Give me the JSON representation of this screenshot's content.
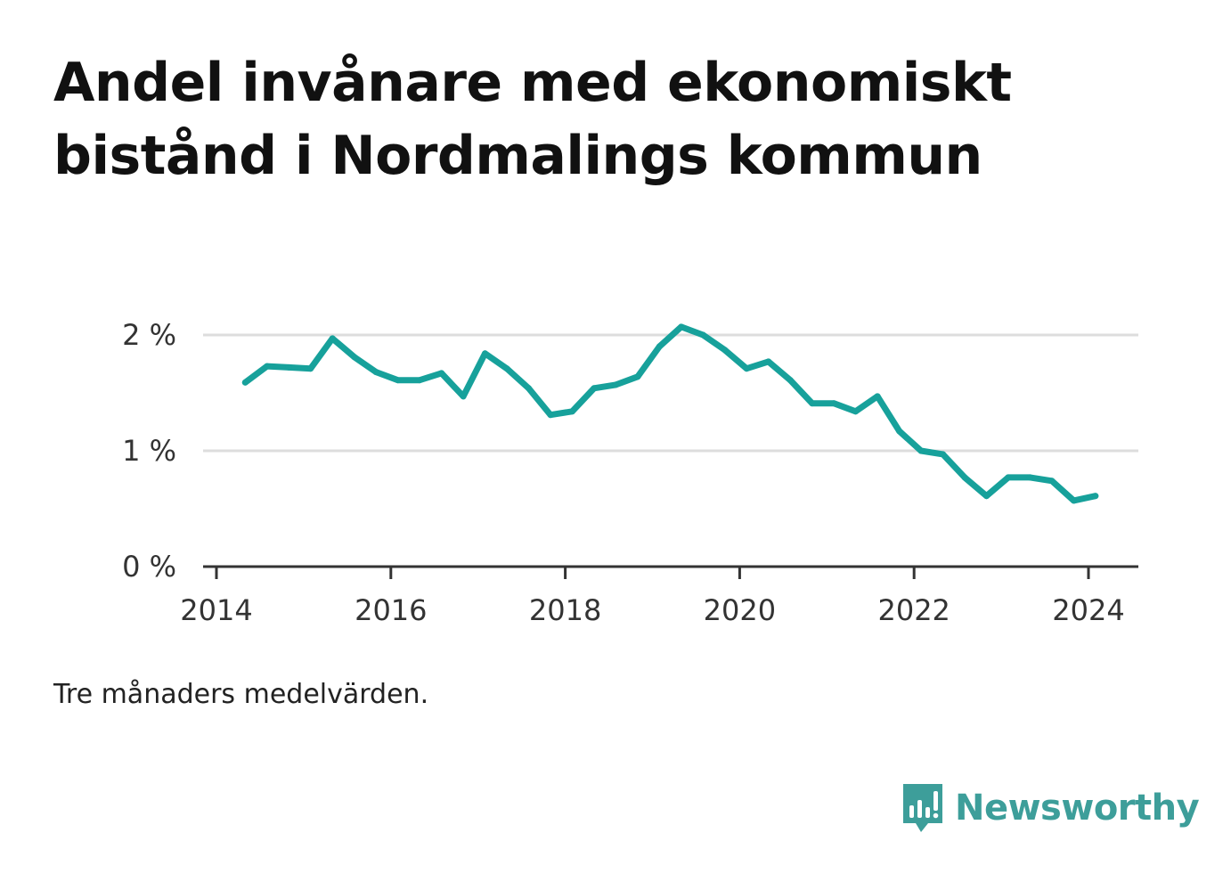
{
  "title": "Andel invånare med ekonomiskt bistånd i Nordmalings kommun",
  "note": "Tre månaders medelvärden.",
  "brand": {
    "name": "Newsworthy",
    "color": "#3d9e9a",
    "icon": "newsworthy-logo-icon"
  },
  "chart_data": {
    "type": "line",
    "title": "Andel invånare med ekonomiskt bistånd i Nordmalings kommun",
    "xlabel": "",
    "ylabel": "",
    "xlim": [
      2014,
      2024.6
    ],
    "ylim": [
      0,
      2.3
    ],
    "x_ticks": [
      2014,
      2016,
      2018,
      2020,
      2022,
      2024
    ],
    "x_tick_labels": [
      "2014",
      "2016",
      "2018",
      "2020",
      "2022",
      "2024"
    ],
    "y_ticks": [
      0,
      1,
      2
    ],
    "y_tick_labels": [
      "0 %",
      "1 %",
      "2 %"
    ],
    "grid": "horizontal",
    "legend": "none",
    "line_color": "#17a19b",
    "series": [
      {
        "x": [
          2014.33,
          2014.58,
          2014.83,
          2015.08,
          2015.33,
          2015.58,
          2015.83,
          2016.08,
          2016.33,
          2016.58,
          2016.83,
          2017.08,
          2017.33,
          2017.58,
          2017.83,
          2018.08,
          2018.33,
          2018.58,
          2018.83,
          2019.08,
          2019.33,
          2019.58,
          2019.83,
          2020.08,
          2020.33,
          2020.58,
          2020.83,
          2021.08,
          2021.33,
          2021.58,
          2021.83,
          2022.08,
          2022.33,
          2022.58,
          2022.83,
          2023.08,
          2023.33,
          2023.58,
          2023.83,
          2024.08
        ],
        "y": [
          1.59,
          1.73,
          1.72,
          1.71,
          1.97,
          1.81,
          1.68,
          1.61,
          1.61,
          1.67,
          1.47,
          1.84,
          1.71,
          1.54,
          1.31,
          1.34,
          1.54,
          1.57,
          1.64,
          1.9,
          2.07,
          2.0,
          1.87,
          1.71,
          1.77,
          1.61,
          1.41,
          1.41,
          1.34,
          1.47,
          1.17,
          1.0,
          0.97,
          0.77,
          0.61,
          0.77,
          0.77,
          0.74,
          0.57,
          0.61
        ]
      }
    ]
  }
}
